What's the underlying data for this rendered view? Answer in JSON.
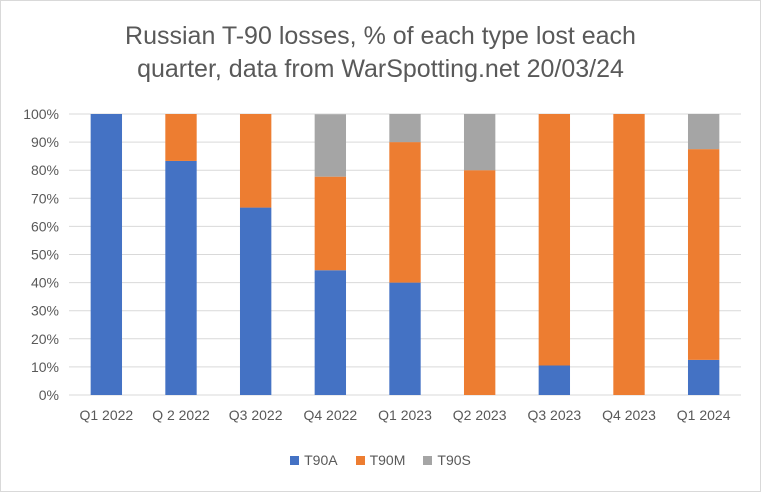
{
  "chart_data": {
    "type": "bar",
    "stacked": true,
    "title_lines": [
      "Russian T-90 losses, % of each type lost each",
      "quarter, data from WarSpotting.net 20/03/24"
    ],
    "categories": [
      "Q1 2022",
      "Q 2 2022",
      "Q3 2022",
      "Q4 2022",
      "Q1 2023",
      "Q2 2023",
      "Q3 2023",
      "Q4 2023",
      "Q1 2024"
    ],
    "series": [
      {
        "name": "T90A",
        "color": "#4472c4",
        "values": [
          100,
          83.3,
          66.7,
          44.4,
          40,
          0,
          10.5,
          0,
          12.5
        ]
      },
      {
        "name": "T90M",
        "color": "#ed7d31",
        "values": [
          0,
          16.7,
          33.3,
          33.3,
          50,
          80,
          89.5,
          100,
          75
        ]
      },
      {
        "name": "T90S",
        "color": "#a5a5a5",
        "values": [
          0,
          0,
          0,
          22.2,
          10,
          20,
          0,
          0,
          12.5
        ]
      }
    ],
    "ylim": [
      0,
      100
    ],
    "yticks": [
      "0%",
      "10%",
      "20%",
      "30%",
      "40%",
      "50%",
      "60%",
      "70%",
      "80%",
      "90%",
      "100%"
    ],
    "legend_position": "bottom",
    "grid": true
  }
}
